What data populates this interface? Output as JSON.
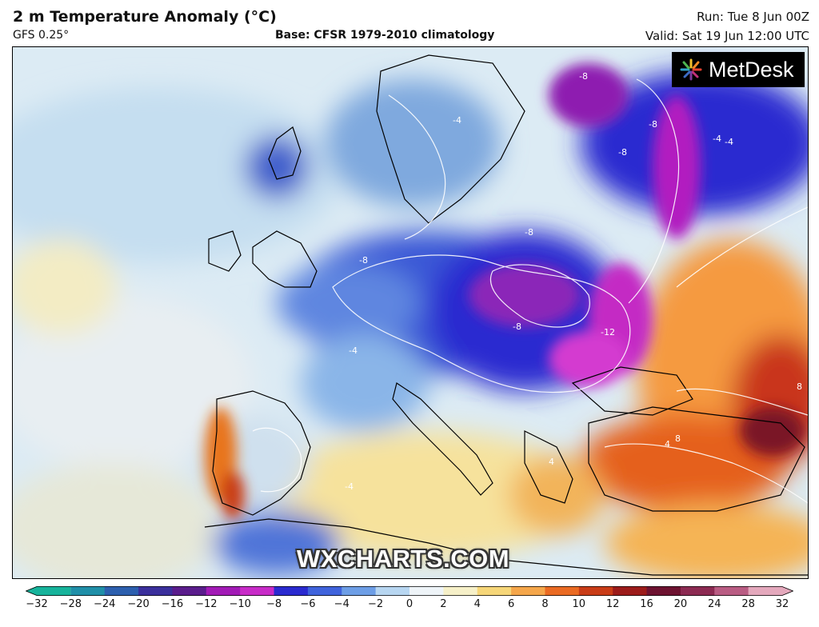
{
  "header": {
    "title": "2 m Temperature Anomaly (°C)",
    "model": "GFS 0.25°",
    "base": "Base: CFSR 1979-2010 climatology",
    "run": "Run: Tue 8 Jun 00Z",
    "valid": "Valid: Sat 19 Jun 12:00 UTC"
  },
  "logo": {
    "text": "MetDesk",
    "icon": "starburst-icon"
  },
  "watermark": "WXCHARTS.COM",
  "map": {
    "region": "Europe",
    "contour_labels": [
      "-12",
      "-8",
      "-8",
      "-8",
      "-8",
      "-8",
      "-8",
      "-4",
      "-4",
      "-4",
      "-4",
      "-4",
      "4",
      "4",
      "8",
      "8"
    ]
  },
  "colorbar": {
    "ticks": [
      "−32",
      "−28",
      "−24",
      "−20",
      "−16",
      "−12",
      "−10",
      "−8",
      "−6",
      "−4",
      "−2",
      "0",
      "2",
      "4",
      "6",
      "8",
      "10",
      "12",
      "16",
      "20",
      "24",
      "28",
      "32"
    ],
    "colors": [
      "#16b39b",
      "#1f8fa8",
      "#2c5fae",
      "#3a2f9c",
      "#5a1c8c",
      "#a21ab6",
      "#c82bc8",
      "#2a2ad0",
      "#3f63dc",
      "#6d9ee6",
      "#b7d6f1",
      "#eef4f8",
      "#f6f0c8",
      "#f6d678",
      "#f5a64a",
      "#ea6a22",
      "#c93c17",
      "#9c1b1a",
      "#6d1230",
      "#8c2a52",
      "#b95c83",
      "#e4a8bc"
    ]
  }
}
